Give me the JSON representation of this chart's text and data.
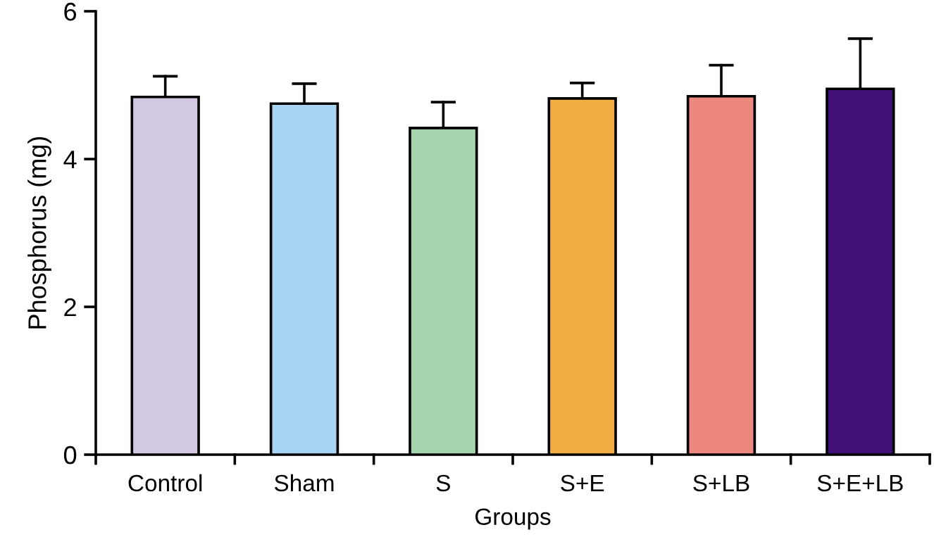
{
  "chart_data": {
    "type": "bar",
    "xlabel": "Groups",
    "ylabel": "Phosphorus (mg)",
    "categories": [
      "Control",
      "Sham",
      "S",
      "S+E",
      "S+LB",
      "S+E+LB"
    ],
    "values": [
      4.84,
      4.75,
      4.42,
      4.82,
      4.85,
      4.95
    ],
    "colors": [
      "#d3c8e2",
      "#a6d4f2",
      "#a5d4ae",
      "#f1ae45",
      "#ec887e",
      "#3f1177"
    ],
    "errors": [
      [
        4.84,
        5.12
      ],
      [
        4.75,
        5.02
      ],
      [
        4.42,
        4.77
      ],
      [
        4.82,
        5.03
      ],
      [
        4.85,
        5.27
      ],
      [
        4.95,
        5.63
      ]
    ],
    "ylim": [
      0,
      6
    ],
    "yticks": [
      0,
      2,
      4,
      6
    ],
    "grid": false,
    "legend": false
  }
}
